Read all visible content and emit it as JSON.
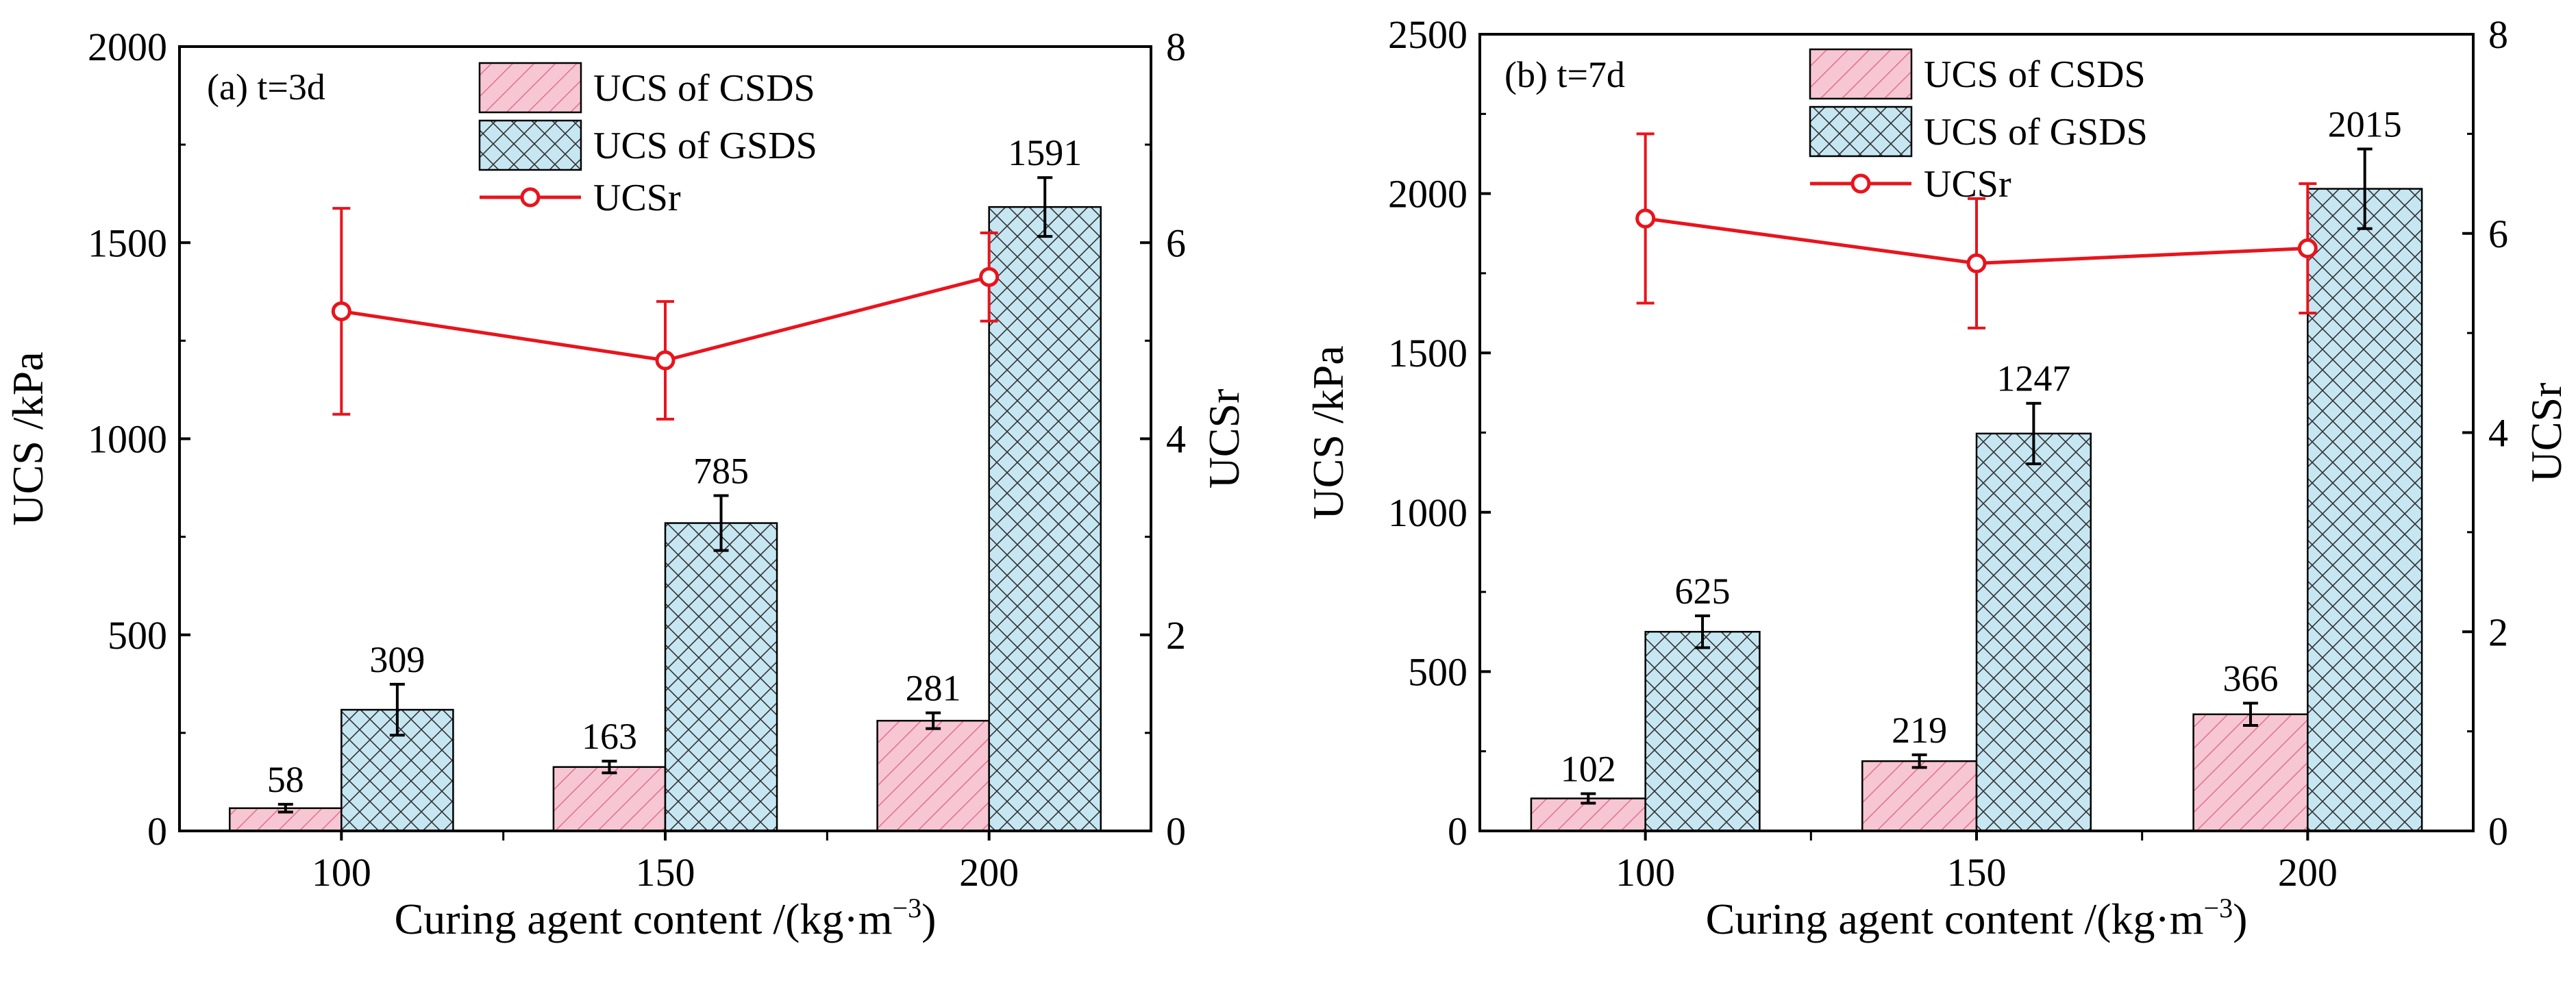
{
  "chart_data": [
    {
      "type": "bar",
      "panel_label": "(a) t=3d",
      "categories": [
        "100",
        "150",
        "200"
      ],
      "xlabel": "Curing agent content /(kg·m",
      "xlabel_sup": "−3",
      "xlabel_end": ")",
      "ylabel": "UCS /kPa",
      "ylabel_right": "UCSr",
      "ylim": [
        0,
        2000
      ],
      "yticks": [
        "0",
        "500",
        "1000",
        "1500",
        "2000"
      ],
      "ylim_right": [
        0,
        8
      ],
      "yticks_right": [
        "0",
        "2",
        "4",
        "6",
        "8"
      ],
      "series": [
        {
          "name": "UCS of CSDS",
          "kind": "bar",
          "values": [
            58,
            163,
            281
          ],
          "labels": [
            "58",
            "163",
            "281"
          ],
          "errors": [
            10,
            15,
            20
          ]
        },
        {
          "name": "UCS of GSDS",
          "kind": "bar",
          "values": [
            309,
            785,
            1591
          ],
          "labels": [
            "309",
            "785",
            "1591"
          ],
          "errors": [
            65,
            70,
            75
          ]
        },
        {
          "name": "UCSr",
          "kind": "line",
          "axis": "right",
          "values": [
            5.3,
            4.8,
            5.65
          ],
          "errors": [
            1.05,
            0.6,
            0.45
          ]
        }
      ]
    },
    {
      "type": "bar",
      "panel_label": "(b) t=7d",
      "categories": [
        "100",
        "150",
        "200"
      ],
      "xlabel": "Curing agent content /(kg·m",
      "xlabel_sup": "−3",
      "xlabel_end": ")",
      "ylabel": "UCS /kPa",
      "ylabel_right": "UCSr",
      "ylim": [
        0,
        2500
      ],
      "yticks": [
        "0",
        "500",
        "1000",
        "1500",
        "2000",
        "2500"
      ],
      "ylim_right": [
        0,
        8
      ],
      "yticks_right": [
        "0",
        "2",
        "4",
        "6",
        "8"
      ],
      "series": [
        {
          "name": "UCS of CSDS",
          "kind": "bar",
          "values": [
            102,
            219,
            366
          ],
          "labels": [
            "102",
            "219",
            "366"
          ],
          "errors": [
            15,
            20,
            35
          ]
        },
        {
          "name": "UCS of GSDS",
          "kind": "bar",
          "values": [
            625,
            1247,
            2015
          ],
          "labels": [
            "625",
            "1247",
            "2015"
          ],
          "errors": [
            50,
            95,
            125
          ]
        },
        {
          "name": "UCSr",
          "kind": "line",
          "axis": "right",
          "values": [
            6.15,
            5.7,
            5.85
          ],
          "errors": [
            0.85,
            0.65,
            0.65
          ]
        }
      ]
    }
  ],
  "colors": {
    "csds_fill": "#f7c6d3",
    "csds_hatch": "#e0718c",
    "gsds_fill": "#c6e6f2",
    "gsds_hatch": "#333333",
    "ucsr_line": "#e8141d",
    "error_bar": "#000000"
  }
}
